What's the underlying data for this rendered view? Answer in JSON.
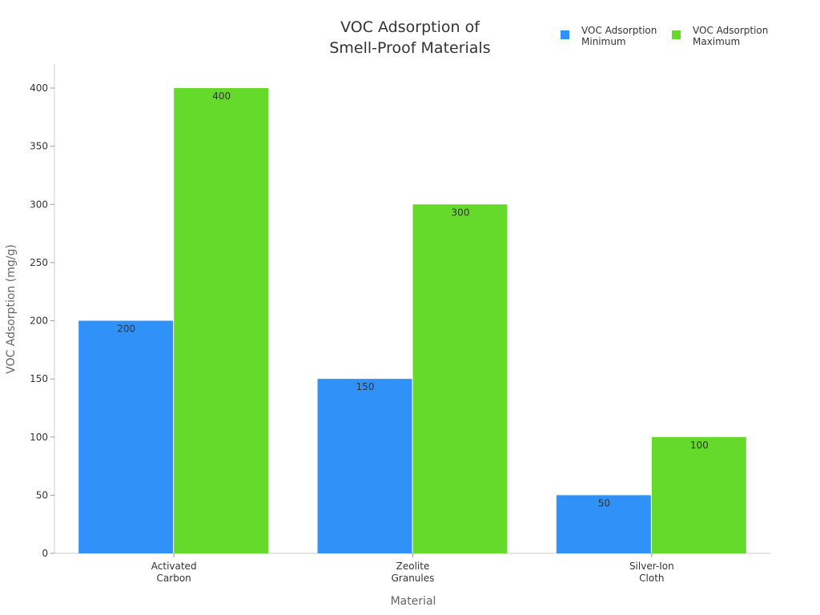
{
  "chart_data": {
    "type": "bar",
    "title": [
      "VOC Adsorption of",
      "Smell-Proof Materials"
    ],
    "xlabel": "Material",
    "ylabel": "VOC Adsorption (mg/g)",
    "categories": [
      [
        "Activated",
        "Carbon"
      ],
      [
        "Zeolite",
        "Granules"
      ],
      [
        "Silver-Ion",
        "Cloth"
      ]
    ],
    "series": [
      {
        "name": [
          "VOC Adsorption",
          "Minimum"
        ],
        "values": [
          200,
          150,
          50
        ],
        "color": "#3091f8"
      },
      {
        "name": [
          "VOC Adsorption",
          "Maximum"
        ],
        "values": [
          400,
          300,
          100
        ],
        "color": "#66da2a"
      }
    ],
    "ylim": [
      0,
      400
    ],
    "yticks": [
      0,
      50,
      100,
      150,
      200,
      250,
      300,
      350,
      400
    ],
    "grid": false,
    "legend": "top-right",
    "data_labels": true
  }
}
